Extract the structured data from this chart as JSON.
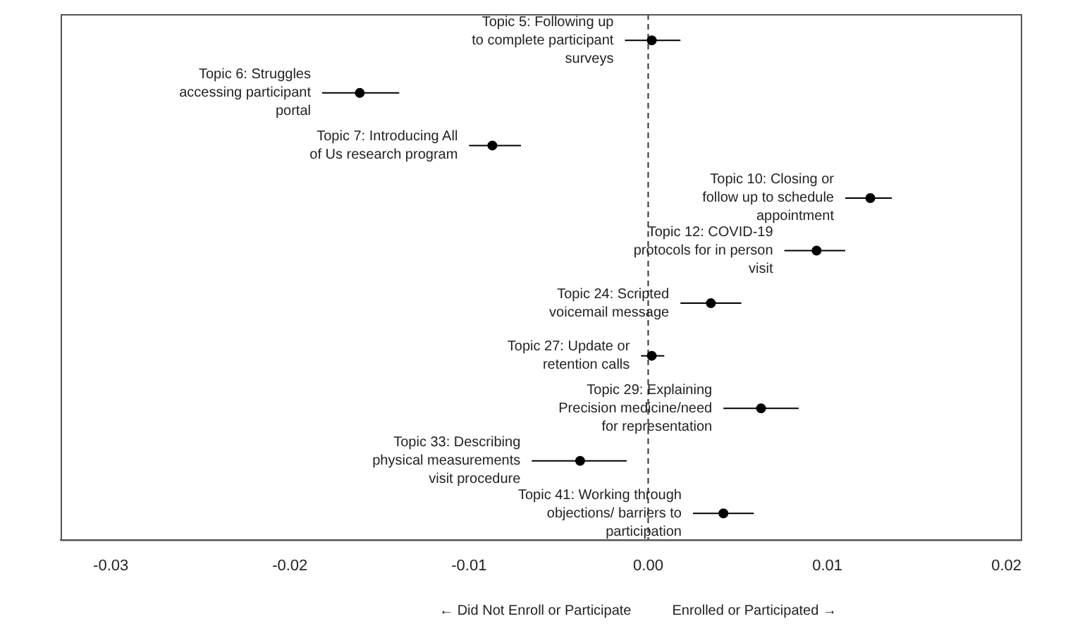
{
  "chart_data": {
    "type": "scatter",
    "orientation": "horizontal",
    "tick_labels": "x",
    "grid": false,
    "legend": false,
    "marker": "circle",
    "categories": [
      "Topic 5: Following up\nto complete participant\nsurveys",
      "Topic 6: Struggles\naccessing participant\nportal",
      "Topic 7: Introducing All\nof Us research program",
      "Topic 10: Closing or\nfollow up to schedule\nappointment",
      "Topic 12: COVID-19\nprotocols for in person\nvisit",
      "Topic 24: Scripted\nvoicemail message",
      "Topic 27: Update or\nretention calls",
      "Topic 29: Explaining\nPrecision medicine/need\nfor representation",
      "Topic 33: Describing\nphysical measurements\nvisit procedure",
      "Topic 41: Working through\nobjections/ barriers to\nparticipation"
    ],
    "series": [
      {
        "color": "#000000",
        "values": [
          0.0002,
          -0.0161,
          -0.0087,
          0.0124,
          0.0094,
          0.0035,
          0.0002,
          0.0063,
          -0.0038,
          0.0042
        ],
        "errors": [
          [
            -0.0013,
            0.0018
          ],
          [
            -0.0182,
            -0.0139
          ],
          [
            -0.01,
            -0.0071
          ],
          [
            0.011,
            0.0136
          ],
          [
            0.0076,
            0.011
          ],
          [
            0.0018,
            0.0052
          ],
          [
            -0.0004,
            0.0009
          ],
          [
            0.0042,
            0.0084
          ],
          [
            -0.0065,
            -0.0012
          ],
          [
            0.0025,
            0.0059
          ]
        ]
      }
    ],
    "xlim": [
      -0.0328,
      0.0208
    ],
    "xticks": [
      {
        "value": -0.03,
        "label": "-0.03"
      },
      {
        "value": -0.02,
        "label": "-0.02"
      },
      {
        "value": -0.01,
        "label": "-0.01"
      },
      {
        "value": 0,
        "label": "0.00"
      },
      {
        "value": 0.01,
        "label": "0.01"
      },
      {
        "value": 0.02,
        "label": "0.02"
      }
    ],
    "ref_lines": [
      {
        "axis": "x",
        "value": 0,
        "color": "#333333",
        "line_style": "dashed"
      }
    ],
    "annotations": [
      "← Did Not Enroll or Participate",
      "Enrolled or Participated →"
    ]
  }
}
